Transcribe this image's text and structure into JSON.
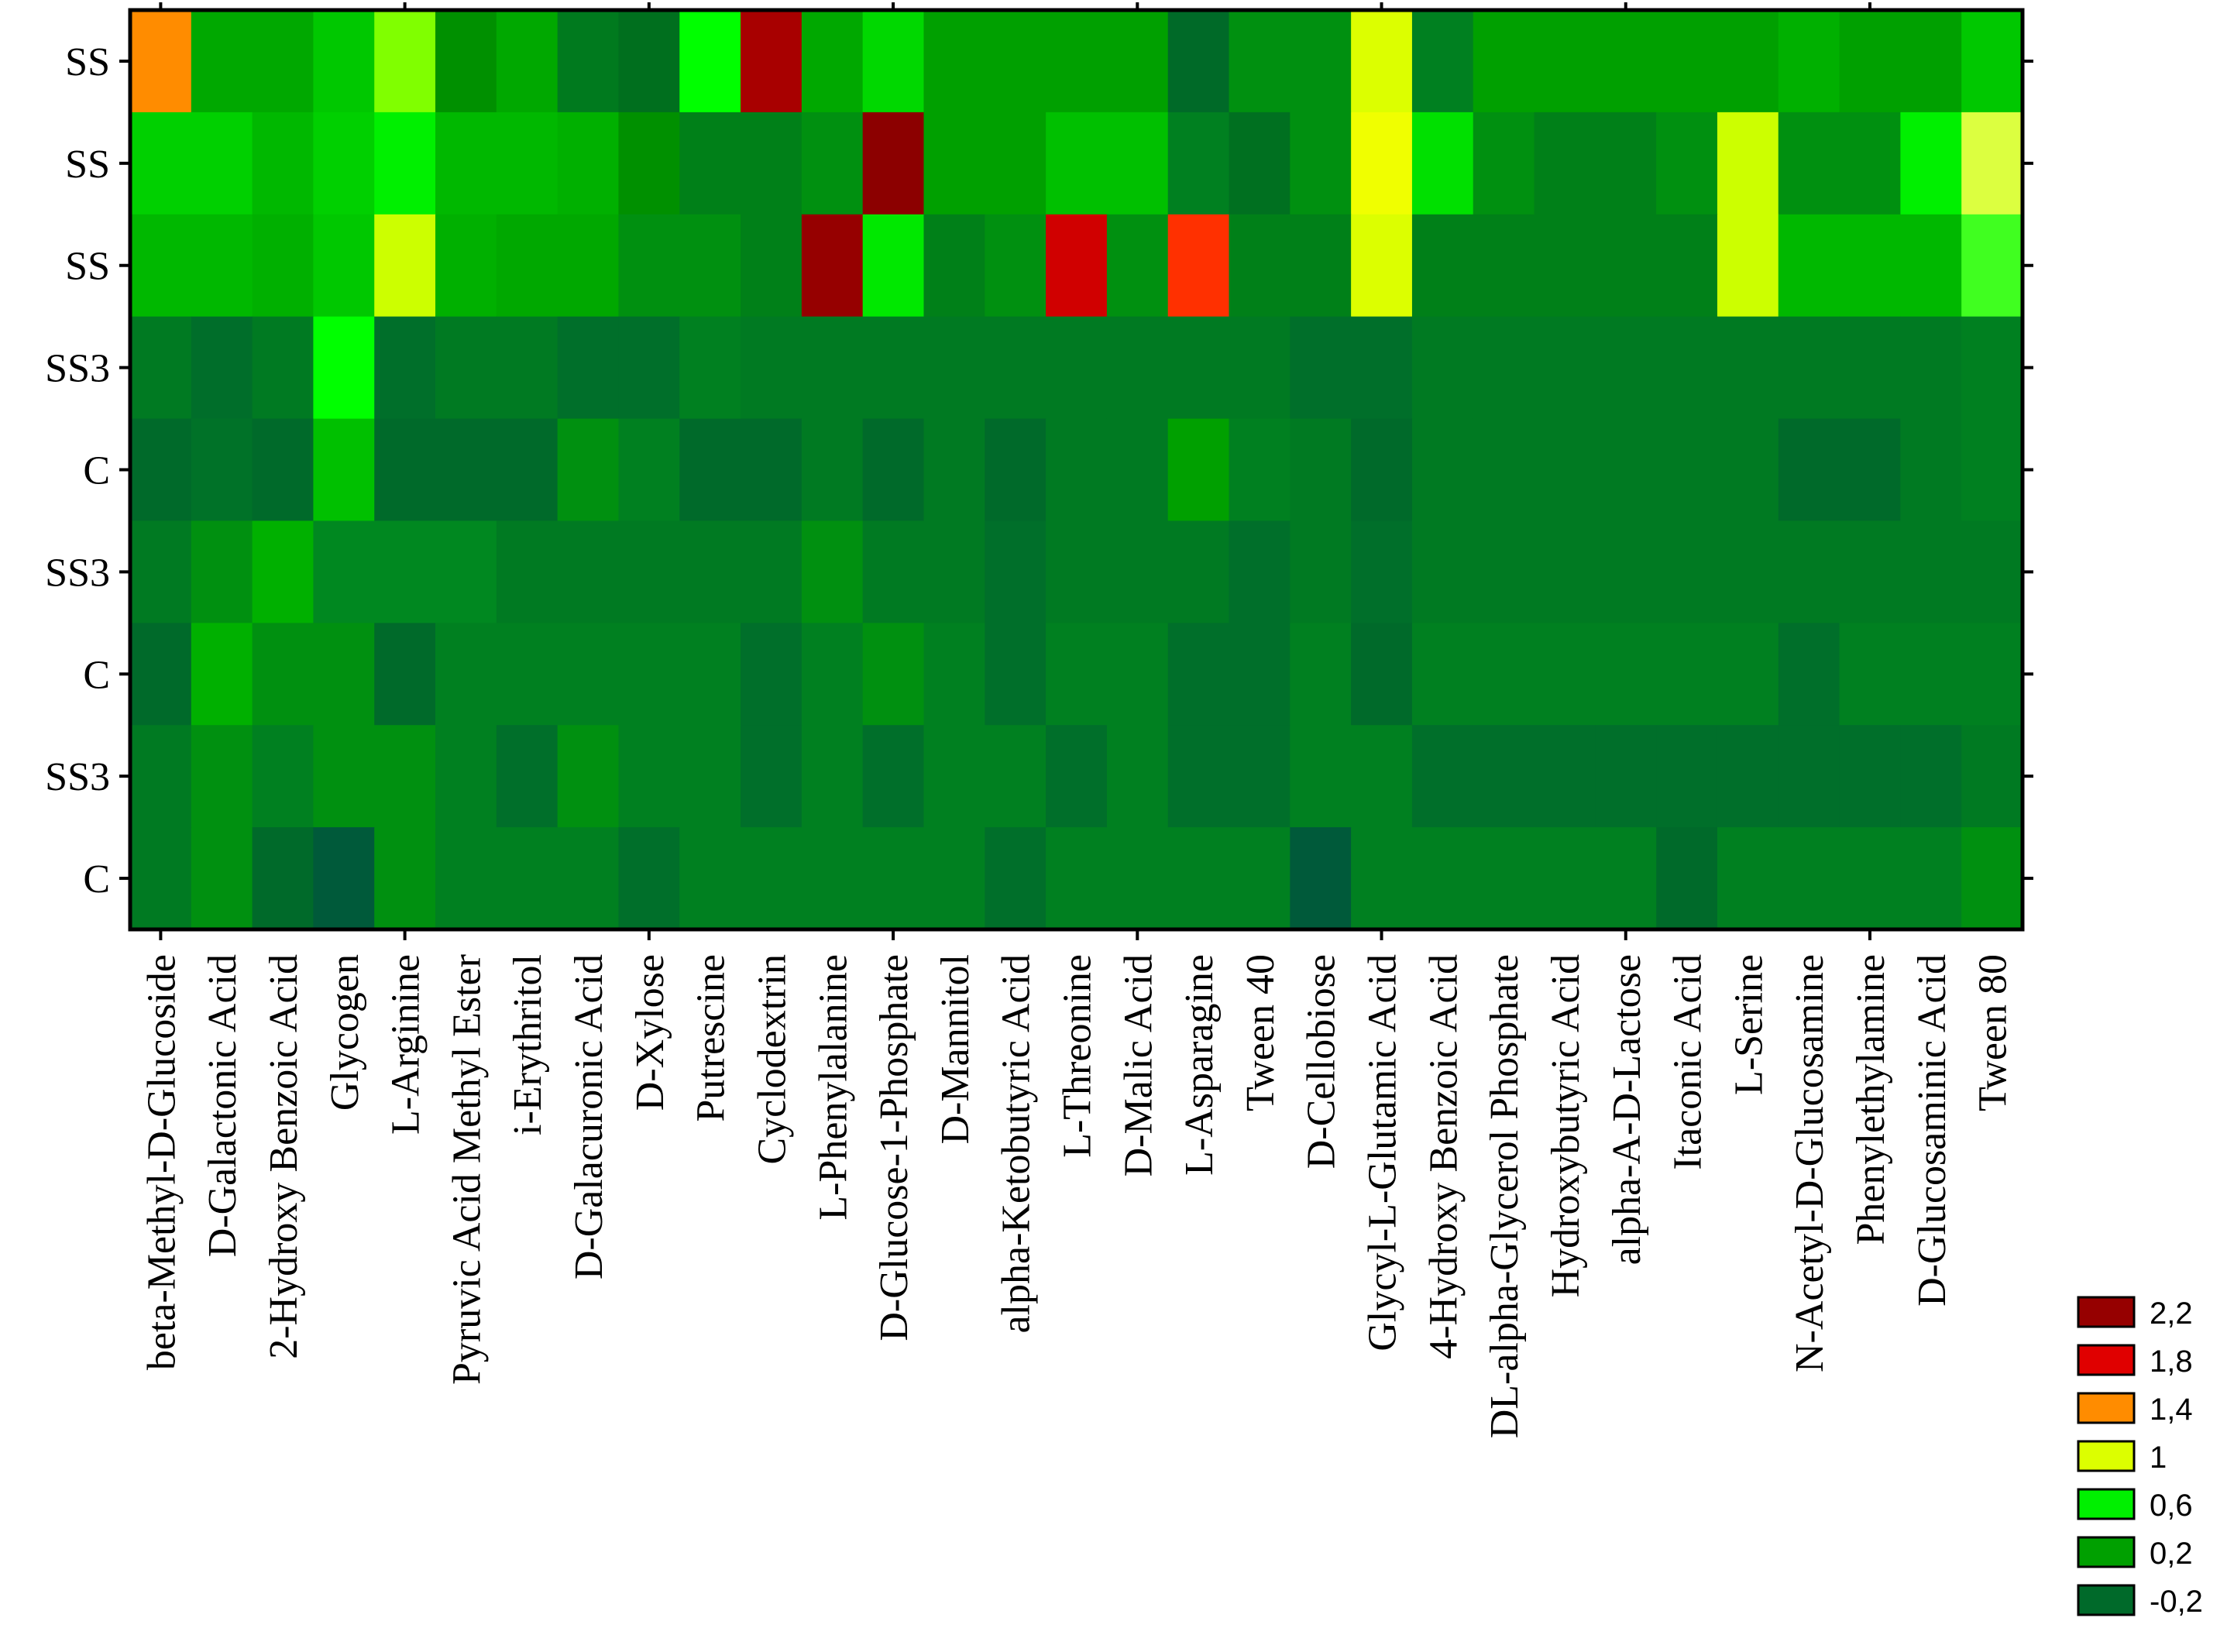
{
  "chart_data": {
    "type": "heatmap",
    "rows": [
      "SS",
      "SS",
      "SS",
      "SS3",
      "C",
      "SS3",
      "C",
      "SS3",
      "C"
    ],
    "columns": [
      "beta-Methyl-D-Glucoside",
      "D-Galactonic Acid",
      "2-Hydroxy Benzoic Acid",
      "Glycogen",
      "L-Arginine",
      "Pyruvic Acid Methyl Ester",
      "i-Erythritol",
      "D-Galacuronic Acid",
      "D-Xylose",
      "Putrescine",
      "Cyclodextrin",
      "L-Phenylalanine",
      "D-Glucose-1-Phosphate",
      "D-Mannitol",
      "alpha-Ketobutyric Acid",
      "L-Threonine",
      "D-Malic Acid",
      "L-Asparagine",
      "Tween 40",
      "D-Cellobiose",
      "Glycyl-L-Glutamic Acid",
      "4-Hydroxy Benzoic Acid",
      "DL-alpha-Glycerol Phosphate",
      "Hydroxybutyric Acid",
      "alpha-A-D-Lactose",
      "Itaconic Acid",
      "L-Serine",
      "N-Acetyl-D-Glucosamine",
      "Phenylethylamine",
      "D-Glucosaminic Acid",
      "Tween 80"
    ],
    "values": [
      [
        1.4,
        0.2,
        0.2,
        0.4,
        0.8,
        0.2,
        0.2,
        0.0,
        -0.1,
        0.6,
        2.2,
        0.2,
        0.4,
        0.2,
        0.2,
        0.2,
        0.2,
        -0.1,
        0.0,
        0.0,
        1.0,
        0.0,
        0.2,
        0.2,
        0.2,
        0.2,
        0.2,
        0.2,
        0.2,
        0.2,
        0.4
      ],
      [
        0.4,
        0.4,
        0.2,
        0.4,
        0.6,
        0.2,
        0.2,
        0.2,
        0.1,
        0.0,
        0.0,
        0.1,
        2.2,
        0.2,
        0.2,
        0.4,
        0.4,
        0.1,
        -0.1,
        0.1,
        1.0,
        0.6,
        0.1,
        0.0,
        0.0,
        0.1,
        0.8,
        0.1,
        0.1,
        0.6,
        0.8
      ],
      [
        0.2,
        0.2,
        0.2,
        0.4,
        0.8,
        0.2,
        0.2,
        0.2,
        0.1,
        0.1,
        0.0,
        2.2,
        0.4,
        0.0,
        0.1,
        1.8,
        0.1,
        1.6,
        0.0,
        0.1,
        1.0,
        0.0,
        0.0,
        0.0,
        0.0,
        0.0,
        0.8,
        0.2,
        0.2,
        0.2,
        0.6
      ],
      [
        0.0,
        -0.1,
        0.0,
        0.6,
        -0.1,
        0.0,
        0.0,
        -0.1,
        -0.1,
        0.0,
        -0.1,
        0.0,
        0.0,
        0.0,
        0.0,
        0.0,
        0.0,
        0.0,
        0.0,
        -0.1,
        -0.1,
        0.0,
        0.0,
        0.0,
        0.0,
        0.0,
        0.0,
        0.0,
        0.0,
        0.0,
        0.0
      ],
      [
        -0.1,
        -0.05,
        -0.1,
        0.4,
        -0.1,
        -0.1,
        -0.1,
        0.1,
        0.0,
        -0.1,
        -0.1,
        0.0,
        -0.1,
        0.0,
        -0.1,
        0.0,
        0.0,
        0.1,
        0.0,
        0.0,
        -0.1,
        0.0,
        0.0,
        0.0,
        0.0,
        0.0,
        0.0,
        -0.1,
        -0.1,
        0.0,
        0.0
      ],
      [
        0.0,
        0.1,
        0.2,
        0.1,
        0.1,
        0.1,
        0.0,
        0.0,
        0.0,
        0.0,
        0.0,
        0.1,
        0.0,
        0.0,
        -0.05,
        0.0,
        0.0,
        0.0,
        -0.05,
        0.0,
        -0.05,
        0.0,
        0.0,
        0.0,
        0.0,
        0.0,
        0.0,
        0.0,
        0.0,
        0.0,
        0.0
      ],
      [
        -0.1,
        0.2,
        0.1,
        0.1,
        -0.1,
        0.0,
        0.0,
        0.0,
        0.0,
        0.0,
        -0.05,
        0.0,
        0.1,
        0.0,
        -0.05,
        0.0,
        0.0,
        -0.05,
        -0.05,
        0.0,
        -0.1,
        0.0,
        0.0,
        0.0,
        0.0,
        0.0,
        0.0,
        -0.05,
        0.0,
        0.0,
        0.0
      ],
      [
        0.0,
        0.1,
        0.0,
        0.1,
        0.1,
        0.0,
        -0.1,
        0.1,
        0.0,
        0.0,
        -0.05,
        0.0,
        -0.05,
        0.0,
        0.0,
        -0.05,
        0.0,
        -0.05,
        -0.05,
        0.0,
        0.0,
        -0.05,
        -0.05,
        -0.05,
        -0.05,
        -0.05,
        -0.05,
        -0.05,
        -0.05,
        -0.05,
        0.0
      ],
      [
        0.0,
        0.1,
        -0.1,
        -0.2,
        0.1,
        0.0,
        0.0,
        0.0,
        -0.05,
        0.0,
        0.0,
        0.0,
        0.0,
        0.0,
        -0.05,
        0.0,
        0.0,
        0.0,
        0.0,
        -0.2,
        0.0,
        0.0,
        0.0,
        0.0,
        0.0,
        -0.1,
        0.0,
        0.0,
        0.0,
        0.0,
        0.1
      ]
    ],
    "cell_colors": [
      [
        "#FF8C00",
        "#00A800",
        "#00A800",
        "#00C800",
        "#80FF00",
        "#009000",
        "#00A800",
        "#007A1E",
        "#006F1E",
        "#00FF00",
        "#A80000",
        "#00A800",
        "#00D800",
        "#00A000",
        "#00A000",
        "#00A000",
        "#00A000",
        "#006A28",
        "#009010",
        "#009010",
        "#DCFF00",
        "#008020",
        "#00A000",
        "#00A000",
        "#00A000",
        "#00A000",
        "#00A000",
        "#00B000",
        "#00A000",
        "#00A000",
        "#00C800"
      ],
      [
        "#00D000",
        "#00D000",
        "#00B800",
        "#00D000",
        "#00F000",
        "#00B800",
        "#00B800",
        "#00B000",
        "#009000",
        "#008018",
        "#008018",
        "#009010",
        "#8C0000",
        "#00A000",
        "#00A000",
        "#00C000",
        "#00C000",
        "#008020",
        "#007020",
        "#009010",
        "#F0FF00",
        "#00E000",
        "#009010",
        "#008018",
        "#008018",
        "#009010",
        "#CCFF00",
        "#009010",
        "#009010",
        "#00F000",
        "#DCFF40"
      ],
      [
        "#00B800",
        "#00B800",
        "#00B000",
        "#00C800",
        "#CCFF00",
        "#00B000",
        "#00A800",
        "#00A800",
        "#009010",
        "#009010",
        "#008018",
        "#960000",
        "#00E800",
        "#008018",
        "#009010",
        "#D00000",
        "#009010",
        "#FF3000",
        "#008018",
        "#008018",
        "#DCFF00",
        "#008018",
        "#008018",
        "#008018",
        "#008018",
        "#008018",
        "#CCFF00",
        "#00B800",
        "#00B800",
        "#00B800",
        "#40FF20"
      ],
      [
        "#007A22",
        "#006E2A",
        "#007A22",
        "#00FF00",
        "#006F2A",
        "#007A22",
        "#007A22",
        "#006F2A",
        "#006F2A",
        "#008020",
        "#007A22",
        "#007A22",
        "#007A22",
        "#007A22",
        "#007A22",
        "#007A22",
        "#007A22",
        "#007A22",
        "#007A22",
        "#006F2A",
        "#006F2A",
        "#007A22",
        "#007A22",
        "#007A22",
        "#007A22",
        "#007A22",
        "#007A22",
        "#007A22",
        "#007A22",
        "#007A22",
        "#008020"
      ],
      [
        "#006A2A",
        "#007228",
        "#006A2A",
        "#00C000",
        "#006A2A",
        "#006A2A",
        "#006A2A",
        "#009010",
        "#008020",
        "#006A2A",
        "#006A2A",
        "#007A22",
        "#006A2A",
        "#007A22",
        "#006A2A",
        "#007A22",
        "#007A22",
        "#00A000",
        "#008020",
        "#007A22",
        "#006A2A",
        "#007A22",
        "#007A22",
        "#007A22",
        "#007A22",
        "#007A22",
        "#007A22",
        "#006A2A",
        "#006A2A",
        "#007A22",
        "#008020"
      ],
      [
        "#007A22",
        "#009010",
        "#00B000",
        "#008820",
        "#008820",
        "#008820",
        "#007A22",
        "#007A22",
        "#007A22",
        "#007A22",
        "#007A22",
        "#009010",
        "#007A22",
        "#007A22",
        "#006F2A",
        "#007A22",
        "#007A22",
        "#007A22",
        "#006F2A",
        "#007A22",
        "#006F2A",
        "#007A22",
        "#007A22",
        "#007A22",
        "#007A22",
        "#007A22",
        "#007A22",
        "#007A22",
        "#007A22",
        "#007A22",
        "#007A22"
      ],
      [
        "#006A2A",
        "#00B000",
        "#009010",
        "#009010",
        "#006A2A",
        "#008020",
        "#008020",
        "#008020",
        "#008020",
        "#008020",
        "#006F2A",
        "#008020",
        "#009010",
        "#008020",
        "#006F2A",
        "#008020",
        "#008020",
        "#006F2A",
        "#006F2A",
        "#008020",
        "#006A2A",
        "#008020",
        "#008020",
        "#008020",
        "#008020",
        "#008020",
        "#008020",
        "#006F2A",
        "#008020",
        "#008020",
        "#008020"
      ],
      [
        "#007A22",
        "#009010",
        "#008020",
        "#009010",
        "#009010",
        "#008020",
        "#006F2A",
        "#009010",
        "#008020",
        "#008020",
        "#006F2A",
        "#008020",
        "#006F2A",
        "#008020",
        "#008020",
        "#006F2A",
        "#008020",
        "#006F2A",
        "#006F2A",
        "#008020",
        "#008020",
        "#006F2A",
        "#006F2A",
        "#006F2A",
        "#006F2A",
        "#006F2A",
        "#006F2A",
        "#006F2A",
        "#006F2A",
        "#006F2A",
        "#007A22"
      ],
      [
        "#007A22",
        "#009010",
        "#006A2A",
        "#005A3A",
        "#009010",
        "#008020",
        "#008020",
        "#008020",
        "#006F2A",
        "#008020",
        "#008020",
        "#008020",
        "#008020",
        "#008020",
        "#006F2A",
        "#008020",
        "#008020",
        "#008020",
        "#008020",
        "#005A3A",
        "#008020",
        "#008020",
        "#008020",
        "#008020",
        "#008020",
        "#006A2A",
        "#008020",
        "#008020",
        "#008020",
        "#008020",
        "#009010"
      ]
    ],
    "legend": {
      "placement": "bottom-right",
      "items": [
        {
          "label": "2,2",
          "color": "#960000"
        },
        {
          "label": "1,8",
          "color": "#E00000"
        },
        {
          "label": "1,4",
          "color": "#FF8C00"
        },
        {
          "label": "1",
          "color": "#DCFF00"
        },
        {
          "label": "0,6",
          "color": "#00F000"
        },
        {
          "label": "0,2",
          "color": "#00A000"
        },
        {
          "label": "-0,2",
          "color": "#006A2A"
        }
      ]
    }
  }
}
